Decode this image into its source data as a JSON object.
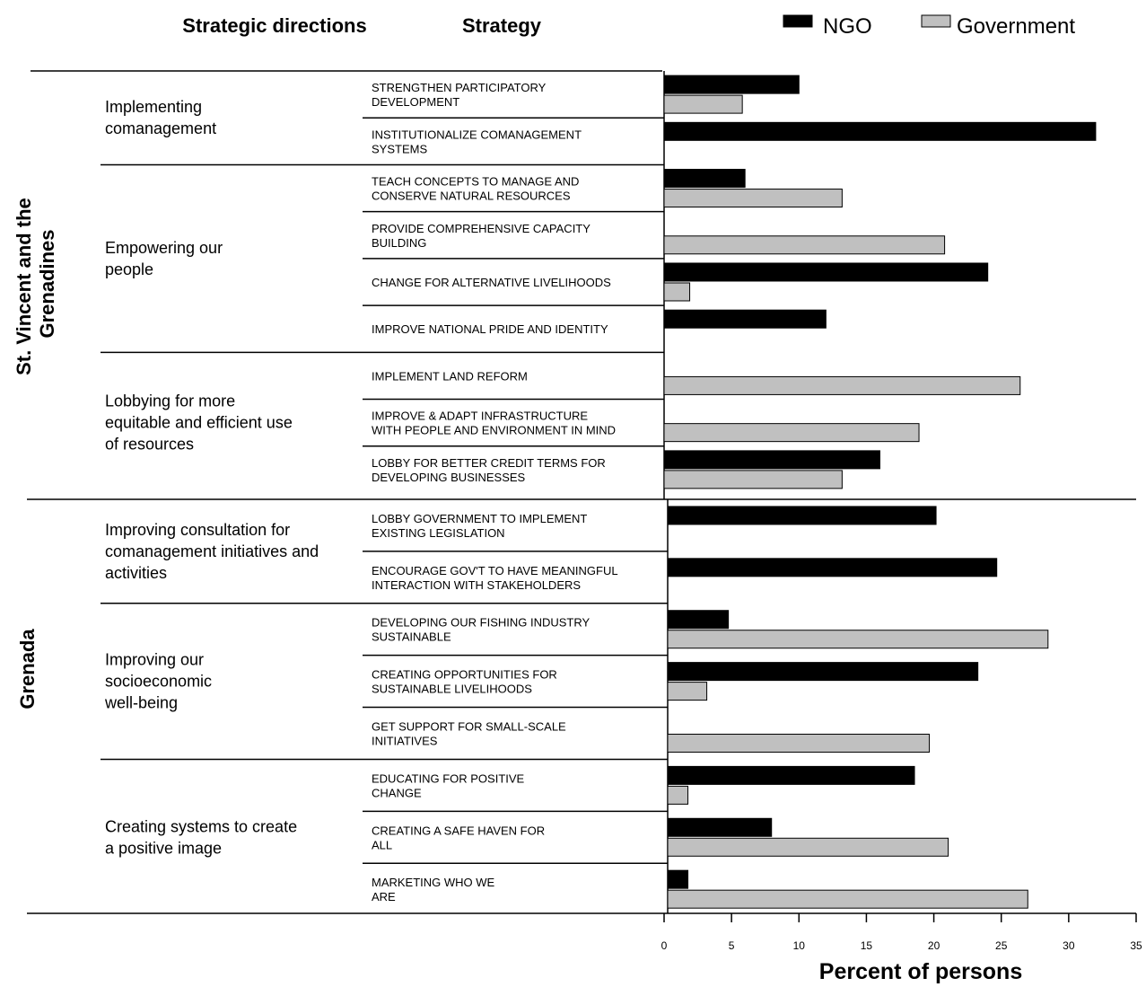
{
  "headers": {
    "directions": "Strategic directions",
    "strategy": "Strategy"
  },
  "legend": {
    "ngo": "NGO",
    "government": "Government"
  },
  "colors": {
    "ngo": "#000000",
    "government": "#c0c0c0"
  },
  "chart_data": {
    "type": "bar",
    "orientation": "horizontal",
    "xlabel": "Percent of persons",
    "xlim": [
      0,
      35
    ],
    "xticks": [
      0,
      5,
      10,
      15,
      20,
      25,
      30,
      35
    ],
    "legend_position": "top-right",
    "series_names": [
      "NGO",
      "Government"
    ],
    "regions": [
      {
        "name": "St. Vincent and the Grenadines",
        "name_lines": [
          "St. Vincent and the",
          "Grenadines"
        ],
        "directions": [
          {
            "lines": [
              "Implementing",
              "comanagement"
            ],
            "strategies": [
              {
                "lines": [
                  "STRENGTHEN PARTICIPATORY",
                  "DEVELOPMENT"
                ],
                "ngo": 10,
                "government": 5.8
              },
              {
                "lines": [
                  "INSTITUTIONALIZE COMANAGEMENT",
                  "SYSTEMS"
                ],
                "ngo": 32,
                "government": 0
              }
            ]
          },
          {
            "lines": [
              "Empowering our",
              "people"
            ],
            "strategies": [
              {
                "lines": [
                  "TEACH CONCEPTS TO MANAGE AND",
                  "CONSERVE NATURAL RESOURCES"
                ],
                "ngo": 6,
                "government": 13.2
              },
              {
                "lines": [
                  "PROVIDE COMPREHENSIVE CAPACITY",
                  "BUILDING"
                ],
                "ngo": 0,
                "government": 20.8
              },
              {
                "lines": [
                  "CHANGE FOR ALTERNATIVE LIVELIHOODS"
                ],
                "ngo": 24,
                "government": 1.9
              },
              {
                "lines": [
                  "IMPROVE NATIONAL PRIDE AND IDENTITY"
                ],
                "ngo": 12,
                "government": 0
              }
            ]
          },
          {
            "lines": [
              "Lobbying for more",
              "equitable and efficient use",
              "of resources"
            ],
            "strategies": [
              {
                "lines": [
                  "IMPLEMENT LAND REFORM"
                ],
                "ngo": 0,
                "government": 26.4
              },
              {
                "lines": [
                  "IMPROVE & ADAPT INFRASTRUCTURE",
                  "WITH PEOPLE AND ENVIRONMENT IN MIND"
                ],
                "ngo": 0,
                "government": 18.9
              },
              {
                "lines": [
                  "LOBBY FOR BETTER CREDIT TERMS FOR",
                  "DEVELOPING BUSINESSES"
                ],
                "ngo": 16,
                "government": 13.2
              }
            ]
          }
        ]
      },
      {
        "name": "Grenada",
        "name_lines": [
          "Grenada"
        ],
        "directions": [
          {
            "lines": [
              "Improving consultation for",
              "comanagement initiatives and",
              "activities"
            ],
            "strategies": [
              {
                "lines": [
                  "LOBBY GOVERNMENT TO IMPLEMENT",
                  "EXISTING LEGISLATION"
                ],
                "ngo": 19.9,
                "government": 0
              },
              {
                "lines": [
                  "ENCOURAGE GOV'T TO HAVE MEANINGFUL",
                  "INTERACTION WITH STAKEHOLDERS"
                ],
                "ngo": 24.4,
                "government": 0
              }
            ]
          },
          {
            "lines": [
              "Improving our",
              "socioeconomic",
              "well-being"
            ],
            "strategies": [
              {
                "lines": [
                  "DEVELOPING OUR FISHING INDUSTRY",
                  "SUSTAINABLE"
                ],
                "ngo": 4.5,
                "government": 28.2
              },
              {
                "lines": [
                  "CREATING OPPORTUNITIES FOR",
                  "SUSTAINABLE LIVELIHOODS"
                ],
                "ngo": 23,
                "government": 2.9
              },
              {
                "lines": [
                  "GET SUPPORT FOR SMALL-SCALE",
                  "INITIATIVES"
                ],
                "ngo": 0,
                "government": 19.4
              }
            ]
          },
          {
            "lines": [
              "Creating systems to create",
              "a positive image"
            ],
            "strategies": [
              {
                "lines": [
                  "EDUCATING FOR POSITIVE",
                  "CHANGE"
                ],
                "ngo": 18.3,
                "government": 1.5
              },
              {
                "lines": [
                  "CREATING A SAFE HAVEN FOR",
                  "ALL"
                ],
                "ngo": 7.7,
                "government": 20.8
              },
              {
                "lines": [
                  "MARKETING WHO WE",
                  "ARE"
                ],
                "ngo": 1.5,
                "government": 26.7
              }
            ]
          }
        ]
      }
    ]
  }
}
